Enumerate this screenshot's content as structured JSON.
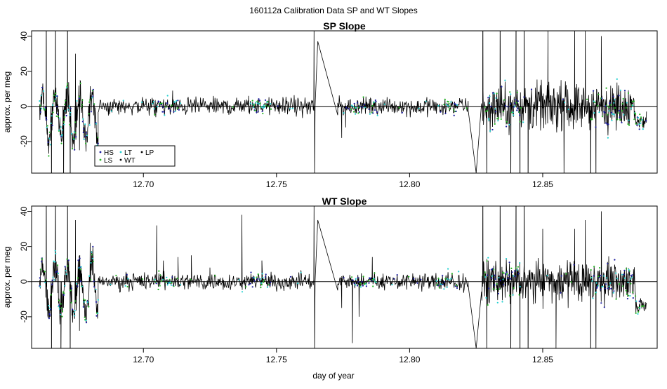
{
  "figure": {
    "main_title": "160112a   Calibration Data SP and WT Slopes",
    "xlabel": "day of year"
  },
  "colors": {
    "HS": "#1a1a9e",
    "LS": "#22b422",
    "LT": "#22d0d0",
    "WT": "#000000",
    "LP": "#000000",
    "zero_line": "#000000"
  },
  "chart_data": [
    {
      "type": "line",
      "title": "SP Slope",
      "xlabel": "",
      "ylabel": "approx. per meg",
      "xlim": [
        12.658,
        12.893
      ],
      "ylim": [
        -38,
        43
      ],
      "xticks": [
        12.7,
        12.75,
        12.8,
        12.85
      ],
      "xtick_labels": [
        "12.70",
        "12.75",
        "12.80",
        "12.85"
      ],
      "yticks": [
        -20,
        0,
        20,
        40
      ],
      "ytick_labels": [
        "-20",
        "0",
        "20",
        "40"
      ],
      "grid": false,
      "reference_line_y": 0,
      "legend": {
        "placement": "bottom-left",
        "entries": [
          {
            "label": "HS",
            "color_key": "HS"
          },
          {
            "label": "LT",
            "color_key": "LT"
          },
          {
            "label": "LP",
            "color_key": "LP"
          },
          {
            "label": "LS",
            "color_key": "LS"
          },
          {
            "label": "WT",
            "color_key": "WT"
          }
        ]
      },
      "segments": [
        {
          "x0": 12.661,
          "x1": 12.683,
          "amp": 16,
          "base": -6,
          "spikes": [
            [
              12.6635,
              75
            ],
            [
              12.6655,
              -70
            ],
            [
              12.667,
              60
            ],
            [
              12.67,
              -55
            ],
            [
              12.6715,
              70
            ],
            [
              12.6725,
              -60
            ],
            [
              12.6745,
              30
            ],
            [
              12.676,
              -25
            ]
          ],
          "colors": [
            "HS",
            "LS",
            "LT"
          ],
          "pts": 180
        },
        {
          "x0": 12.683,
          "x1": 12.764,
          "amp": 3.5,
          "base": 0,
          "spikes": [
            [
              12.711,
              9
            ],
            [
              12.7395,
              6
            ]
          ],
          "colors": [
            "LS",
            "LT",
            "HS"
          ],
          "pts": 420,
          "clusters": [
            [
              12.704,
              12.714
            ],
            [
              12.74,
              12.748
            ]
          ]
        },
        {
          "x0": 12.764,
          "x1": 12.7645,
          "amp": 0,
          "base": 0,
          "spikes": [
            [
              12.7641,
              45
            ],
            [
              12.7643,
              -40
            ]
          ],
          "colors": [],
          "pts": 2
        },
        {
          "x0": 12.7655,
          "x1": 12.773,
          "amp": 0,
          "base": 0,
          "spikes": [],
          "colors": [],
          "pts": 2,
          "ramp": [
            37,
            -5
          ]
        },
        {
          "x0": 12.773,
          "x1": 12.822,
          "amp": 3.5,
          "base": 0,
          "spikes": [
            [
              12.7745,
              -18
            ],
            [
              12.776,
              -12
            ]
          ],
          "colors": [
            "LS",
            "LT",
            "HS"
          ],
          "pts": 260,
          "clusters": [
            [
              12.778,
              12.788
            ],
            [
              12.81,
              12.818
            ]
          ]
        },
        {
          "x0": 12.822,
          "x1": 12.825,
          "amp": 0,
          "base": 0,
          "spikes": [],
          "colors": [],
          "pts": 2,
          "ramp": [
            -2,
            -38
          ]
        },
        {
          "x0": 12.827,
          "x1": 12.889,
          "amp": 9,
          "base": 0,
          "spikes": [
            [
              12.8275,
              70
            ],
            [
              12.829,
              -50
            ],
            [
              12.834,
              60
            ],
            [
              12.838,
              -55
            ],
            [
              12.84,
              70
            ],
            [
              12.8415,
              -70
            ],
            [
              12.843,
              65
            ],
            [
              12.8445,
              -60
            ],
            [
              12.852,
              45
            ],
            [
              12.858,
              -40
            ],
            [
              12.862,
              50
            ],
            [
              12.866,
              45
            ],
            [
              12.868,
              -60
            ],
            [
              12.87,
              -45
            ],
            [
              12.872,
              40
            ]
          ],
          "colors": [
            "HS",
            "LS",
            "LT"
          ],
          "pts": 420,
          "clusters": [
            [
              12.828,
              12.842
            ],
            [
              12.868,
              12.888
            ]
          ],
          "tail": -8
        }
      ]
    },
    {
      "type": "line",
      "title": "WT Slope",
      "xlabel": "day of year",
      "ylabel": "approx. per meg",
      "xlim": [
        12.658,
        12.893
      ],
      "ylim": [
        -38,
        43
      ],
      "xticks": [
        12.7,
        12.75,
        12.8,
        12.85
      ],
      "xtick_labels": [
        "12.70",
        "12.75",
        "12.80",
        "12.85"
      ],
      "yticks": [
        -20,
        0,
        20,
        40
      ],
      "ytick_labels": [
        "-20",
        "0",
        "20",
        "40"
      ],
      "grid": false,
      "reference_line_y": 0,
      "segments": [
        {
          "x0": 12.661,
          "x1": 12.683,
          "amp": 16,
          "base": -4,
          "spikes": [
            [
              12.6635,
              70
            ],
            [
              12.6655,
              -65
            ],
            [
              12.667,
              55
            ],
            [
              12.669,
              -50
            ],
            [
              12.6715,
              65
            ],
            [
              12.6725,
              -55
            ],
            [
              12.6745,
              35
            ],
            [
              12.676,
              -28
            ],
            [
              12.68,
              22
            ]
          ],
          "colors": [
            "HS",
            "LS",
            "LT"
          ],
          "pts": 180
        },
        {
          "x0": 12.683,
          "x1": 12.764,
          "amp": 3.5,
          "base": 0,
          "spikes": [
            [
              12.705,
              32
            ],
            [
              12.7075,
              12
            ],
            [
              12.713,
              14
            ],
            [
              12.718,
              15
            ],
            [
              12.737,
              38
            ],
            [
              12.7445,
              12
            ],
            [
              12.725,
              8
            ]
          ],
          "colors": [
            "LS",
            "LT",
            "HS"
          ],
          "pts": 420,
          "clusters": [
            [
              12.704,
              12.714
            ],
            [
              12.74,
              12.748
            ]
          ]
        },
        {
          "x0": 12.764,
          "x1": 12.7645,
          "amp": 0,
          "base": 0,
          "spikes": [
            [
              12.7641,
              45
            ],
            [
              12.7643,
              -40
            ]
          ],
          "colors": [],
          "pts": 2
        },
        {
          "x0": 12.7655,
          "x1": 12.773,
          "amp": 0,
          "base": 0,
          "spikes": [],
          "colors": [],
          "pts": 2,
          "ramp": [
            35,
            -5
          ]
        },
        {
          "x0": 12.773,
          "x1": 12.822,
          "amp": 3.5,
          "base": 0,
          "spikes": [
            [
              12.7745,
              -15
            ],
            [
              12.7785,
              -35
            ],
            [
              12.781,
              -20
            ],
            [
              12.786,
              14
            ]
          ],
          "colors": [
            "LS",
            "LT",
            "HS"
          ],
          "pts": 260,
          "clusters": [
            [
              12.778,
              12.788
            ],
            [
              12.81,
              12.818
            ]
          ]
        },
        {
          "x0": 12.822,
          "x1": 12.825,
          "amp": 0,
          "base": 0,
          "spikes": [],
          "colors": [],
          "pts": 2,
          "ramp": [
            -2,
            -38
          ]
        },
        {
          "x0": 12.827,
          "x1": 12.889,
          "amp": 8,
          "base": 0,
          "spikes": [
            [
              12.8275,
              70
            ],
            [
              12.829,
              -50
            ],
            [
              12.834,
              60
            ],
            [
              12.838,
              -55
            ],
            [
              12.84,
              70
            ],
            [
              12.8415,
              -70
            ],
            [
              12.843,
              65
            ],
            [
              12.8445,
              -60
            ],
            [
              12.85,
              30
            ],
            [
              12.855,
              -38
            ],
            [
              12.862,
              30
            ],
            [
              12.866,
              35
            ],
            [
              12.868,
              -60
            ],
            [
              12.87,
              -45
            ],
            [
              12.872,
              40
            ]
          ],
          "colors": [
            "HS",
            "LS",
            "LT"
          ],
          "pts": 420,
          "clusters": [
            [
              12.828,
              12.842
            ],
            [
              12.868,
              12.888
            ]
          ],
          "tail": -14
        }
      ]
    }
  ]
}
